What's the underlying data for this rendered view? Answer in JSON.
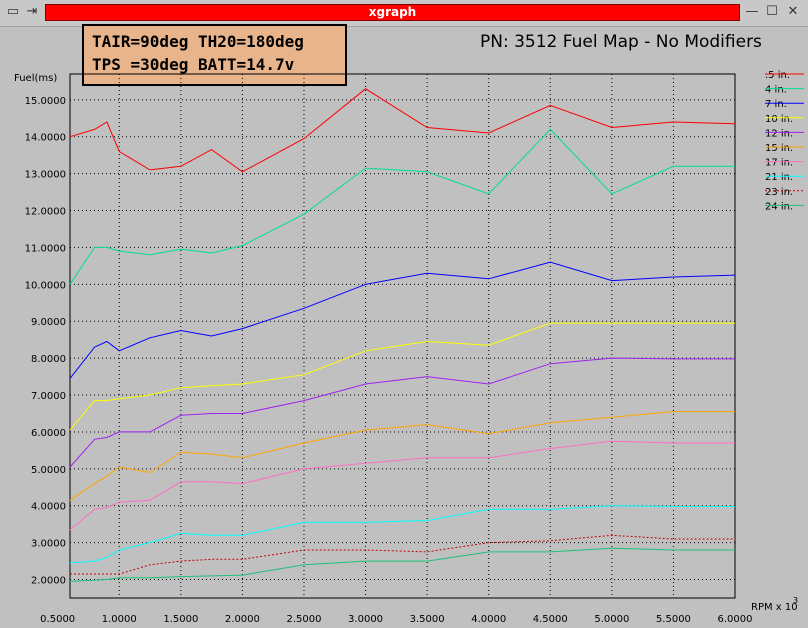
{
  "window": {
    "title": "xgraph",
    "left_glyph": "▭",
    "left_glyph2": "⇥",
    "min_glyph": "—",
    "max_glyph": "☐",
    "close_glyph": "✕"
  },
  "info": {
    "line1": "TAIR=90deg TH20=180deg",
    "line2": "TPS =30deg BATT=14.7v"
  },
  "chart_data": {
    "type": "line",
    "title": "PN: 3512 Fuel Map - No Modifiers",
    "ylabel": "Fuel(ms)",
    "xlabel": "RPM x 10",
    "xlabel_exp": "3",
    "xlim": [
      0.5,
      6.0
    ],
    "ylim": [
      1.5,
      15.7
    ],
    "x_ticks": [
      "0.5000",
      "1.0000",
      "1.5000",
      "2.0000",
      "2.5000",
      "3.0000",
      "3.5000",
      "4.0000",
      "4.5000",
      "5.0000",
      "5.5000",
      "6.0000"
    ],
    "y_ticks": [
      "2.0000",
      "3.0000",
      "4.0000",
      "5.0000",
      "6.0000",
      "7.0000",
      "8.0000",
      "9.0000",
      "10.0000",
      "11.0000",
      "12.0000",
      "13.0000",
      "14.0000",
      "15.0000"
    ],
    "grid": true,
    "legend_position": "right",
    "x": [
      0.6,
      0.8,
      0.9,
      1.0,
      1.25,
      1.5,
      1.75,
      2.0,
      2.5,
      3.0,
      3.5,
      4.0,
      4.5,
      5.0,
      5.5,
      6.0
    ],
    "series": [
      {
        "name": ".5 in.",
        "color": "#ff0000",
        "values": [
          14.0,
          14.2,
          14.4,
          13.6,
          13.1,
          13.2,
          13.65,
          13.05,
          13.95,
          15.3,
          14.25,
          14.1,
          14.85,
          14.25,
          14.4,
          14.35
        ]
      },
      {
        "name": "4 in.",
        "color": "#00e08a",
        "values": [
          10.0,
          11.0,
          11.0,
          10.9,
          10.8,
          10.95,
          10.85,
          11.05,
          11.9,
          13.15,
          13.05,
          12.45,
          14.2,
          12.45,
          13.2,
          13.2
        ]
      },
      {
        "name": "7 in.",
        "color": "#0000ff",
        "values": [
          7.45,
          8.3,
          8.45,
          8.2,
          8.55,
          8.75,
          8.6,
          8.8,
          9.35,
          10.0,
          10.3,
          10.15,
          10.6,
          10.1,
          10.2,
          10.25
        ]
      },
      {
        "name": "10 in.",
        "color": "#ffff00",
        "values": [
          6.05,
          6.85,
          6.85,
          6.9,
          7.0,
          7.2,
          7.25,
          7.3,
          7.55,
          8.2,
          8.45,
          8.35,
          8.95,
          8.95,
          8.95,
          8.95
        ]
      },
      {
        "name": "12 in.",
        "color": "#a020f0",
        "values": [
          5.05,
          5.8,
          5.85,
          6.0,
          6.0,
          6.45,
          6.5,
          6.5,
          6.85,
          7.3,
          7.5,
          7.3,
          7.85,
          8.0,
          7.98,
          7.98
        ]
      },
      {
        "name": "15 in.",
        "color": "#ffa500",
        "values": [
          4.15,
          4.6,
          4.8,
          5.05,
          4.9,
          5.45,
          5.4,
          5.3,
          5.7,
          6.05,
          6.2,
          5.95,
          6.25,
          6.4,
          6.55,
          6.55
        ]
      },
      {
        "name": "17 in.",
        "color": "#ff6ec7",
        "values": [
          3.35,
          3.9,
          3.95,
          4.1,
          4.15,
          4.65,
          4.65,
          4.6,
          5.0,
          5.15,
          5.3,
          5.3,
          5.55,
          5.75,
          5.7,
          5.7
        ]
      },
      {
        "name": "21 in.",
        "color": "#00ffff",
        "values": [
          2.45,
          2.5,
          2.6,
          2.8,
          3.0,
          3.25,
          3.2,
          3.2,
          3.55,
          3.55,
          3.6,
          3.9,
          3.9,
          4.0,
          3.98,
          3.98
        ]
      },
      {
        "name": "23 in.",
        "color": "#c00000",
        "dashed": true,
        "values": [
          2.15,
          2.15,
          2.15,
          2.15,
          2.4,
          2.5,
          2.55,
          2.55,
          2.8,
          2.8,
          2.75,
          3.0,
          3.05,
          3.2,
          3.1,
          3.1
        ]
      },
      {
        "name": "24 in.",
        "color": "#1fc07a",
        "values": [
          1.95,
          1.98,
          2.0,
          2.05,
          2.05,
          2.08,
          2.1,
          2.12,
          2.4,
          2.5,
          2.5,
          2.75,
          2.75,
          2.85,
          2.8,
          2.8
        ]
      }
    ]
  }
}
